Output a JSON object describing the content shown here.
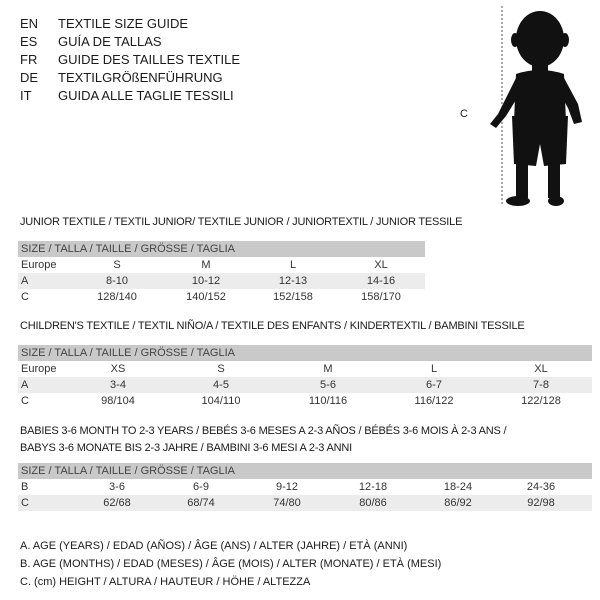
{
  "languages": [
    {
      "code": "EN",
      "title": "TEXTILE SIZE GUIDE"
    },
    {
      "code": "ES",
      "title": "GUÍA DE TALLAS"
    },
    {
      "code": "FR",
      "title": "GUIDE DES TAILLES TEXTILE"
    },
    {
      "code": "DE",
      "title": "TEXTILGRÖßENFÜHRUNG"
    },
    {
      "code": "IT",
      "title": "GUIDA ALLE TAGLIE TESSILI"
    }
  ],
  "figure": {
    "height_label": "C",
    "icon": "child-silhouette"
  },
  "sections": [
    {
      "title": "JUNIOR TEXTILE / TEXTIL JUNIOR/ TEXTILE JUNIOR / JUNIORTEXTIL / JUNIOR TESSILE",
      "header": "SIZE / TALLA / TAILLE / GRÖSSE / TAGLIA",
      "rows": [
        {
          "label": "Europe",
          "cells": [
            "S",
            "M",
            "L",
            "XL"
          ]
        },
        {
          "label": "A",
          "cells": [
            "8-10",
            "10-12",
            "12-13",
            "14-16"
          ]
        },
        {
          "label": "C",
          "cells": [
            "128/140",
            "140/152",
            "152/158",
            "158/170"
          ]
        }
      ]
    },
    {
      "title": "CHILDREN'S TEXTILE / TEXTIL NIÑO/A / TEXTILE DES ENFANTS / KINDERTEXTIL / BAMBINI TESSILE",
      "header": "SIZE / TALLA / TAILLE / GRÖSSE / TAGLIA",
      "rows": [
        {
          "label": "Europe",
          "cells": [
            "XS",
            "S",
            "M",
            "L",
            "XL"
          ]
        },
        {
          "label": "A",
          "cells": [
            "3-4",
            "4-5",
            "5-6",
            "6-7",
            "7-8"
          ]
        },
        {
          "label": "C",
          "cells": [
            "98/104",
            "104/110",
            "110/116",
            "116/122",
            "122/128"
          ]
        }
      ]
    },
    {
      "title": "BABIES 3-6 MONTH TO 2-3 YEARS / BEBÉS 3-6 MESES A 2-3 AÑOS / BÉBÉS 3-6 MOIS À 2-3 ANS /",
      "title2": "BABYS 3-6 MONATE BIS 2-3 JAHRE / BAMBINI 3-6 MESI A 2-3 ANNI",
      "header": "SIZE / TALLA / TAILLE / GRÖSSE / TAGLIA",
      "rows": [
        {
          "label": "B",
          "cells": [
            "3-6",
            "6-9",
            "9-12",
            "12-18",
            "18-24",
            "24-36"
          ]
        },
        {
          "label": "C",
          "cells": [
            "62/68",
            "68/74",
            "74/80",
            "80/86",
            "86/92",
            "92/98"
          ]
        }
      ]
    }
  ],
  "legend": [
    "A. AGE (YEARS) / EDAD (AÑOS) / ÂGE (ANS) / ALTER (JAHRE) / ETÀ (ANNI)",
    "B. AGE (MONTHS) / EDAD (MESES) / ÂGE (MOIS) / ALTER (MONATE) / ETÀ (MESI)",
    "C. (cm) HEIGHT / ALTURA / HAUTEUR / HÖHE / ALTEZZA"
  ]
}
